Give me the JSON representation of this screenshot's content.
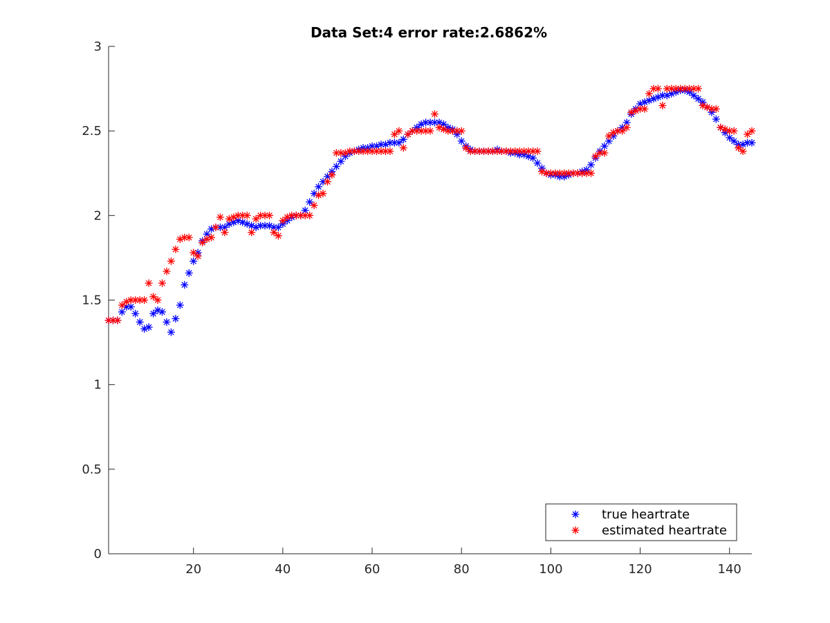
{
  "chart_data": {
    "type": "scatter",
    "title": "Data Set:4 error rate:2.6862%",
    "xlabel": "",
    "ylabel": "",
    "xlim": [
      1,
      145
    ],
    "ylim": [
      0,
      3
    ],
    "xticks": [
      20,
      40,
      60,
      80,
      100,
      120,
      140
    ],
    "yticks": [
      0,
      0.5,
      1,
      1.5,
      2,
      2.5,
      3
    ],
    "ytick_labels": [
      "0",
      "0.5",
      "1",
      "1.5",
      "2",
      "2.5",
      "3"
    ],
    "grid": false,
    "legend_position": "bottom-right",
    "marker": "asterisk",
    "series": [
      {
        "name": "true heartrate",
        "color": "#0000ff",
        "x": [
          1,
          2,
          3,
          4,
          5,
          6,
          7,
          8,
          9,
          10,
          11,
          12,
          13,
          14,
          15,
          16,
          17,
          18,
          19,
          20,
          21,
          22,
          23,
          24,
          25,
          26,
          27,
          28,
          29,
          30,
          31,
          32,
          33,
          34,
          35,
          36,
          37,
          38,
          39,
          40,
          41,
          42,
          43,
          44,
          45,
          46,
          47,
          48,
          49,
          50,
          51,
          52,
          53,
          54,
          55,
          56,
          57,
          58,
          59,
          60,
          61,
          62,
          63,
          64,
          65,
          66,
          67,
          68,
          69,
          70,
          71,
          72,
          73,
          74,
          75,
          76,
          77,
          78,
          79,
          80,
          81,
          82,
          83,
          84,
          85,
          86,
          87,
          88,
          89,
          90,
          91,
          92,
          93,
          94,
          95,
          96,
          97,
          98,
          99,
          100,
          101,
          102,
          103,
          104,
          105,
          106,
          107,
          108,
          109,
          110,
          111,
          112,
          113,
          114,
          115,
          116,
          117,
          118,
          119,
          120,
          121,
          122,
          123,
          124,
          125,
          126,
          127,
          128,
          129,
          130,
          131,
          132,
          133,
          134,
          135,
          136,
          137,
          138,
          139,
          140,
          141,
          142,
          143,
          144,
          145
        ],
        "y": [
          1.38,
          1.38,
          1.38,
          1.43,
          1.46,
          1.46,
          1.42,
          1.37,
          1.33,
          1.34,
          1.42,
          1.44,
          1.43,
          1.37,
          1.31,
          1.39,
          1.47,
          1.59,
          1.66,
          1.73,
          1.78,
          1.85,
          1.89,
          1.92,
          1.93,
          1.93,
          1.93,
          1.95,
          1.96,
          1.97,
          1.96,
          1.95,
          1.94,
          1.93,
          1.94,
          1.94,
          1.94,
          1.93,
          1.93,
          1.95,
          1.97,
          1.99,
          2.0,
          2.0,
          2.03,
          2.08,
          2.13,
          2.17,
          2.2,
          2.23,
          2.26,
          2.29,
          2.32,
          2.35,
          2.37,
          2.38,
          2.39,
          2.4,
          2.4,
          2.41,
          2.41,
          2.42,
          2.42,
          2.43,
          2.43,
          2.43,
          2.45,
          2.48,
          2.5,
          2.52,
          2.54,
          2.55,
          2.55,
          2.55,
          2.55,
          2.54,
          2.52,
          2.51,
          2.48,
          2.44,
          2.41,
          2.39,
          2.38,
          2.38,
          2.38,
          2.38,
          2.38,
          2.39,
          2.38,
          2.38,
          2.37,
          2.37,
          2.36,
          2.36,
          2.35,
          2.34,
          2.31,
          2.28,
          2.25,
          2.24,
          2.24,
          2.23,
          2.23,
          2.24,
          2.25,
          2.25,
          2.26,
          2.27,
          2.3,
          2.34,
          2.38,
          2.41,
          2.44,
          2.47,
          2.5,
          2.52,
          2.55,
          2.6,
          2.63,
          2.66,
          2.67,
          2.68,
          2.69,
          2.7,
          2.71,
          2.71,
          2.72,
          2.73,
          2.74,
          2.74,
          2.73,
          2.71,
          2.69,
          2.67,
          2.64,
          2.61,
          2.57,
          2.52,
          2.49,
          2.46,
          2.44,
          2.42,
          2.42,
          2.43,
          2.43
        ]
      },
      {
        "name": "estimated heartrate",
        "color": "#ff0000",
        "x": [
          1,
          2,
          3,
          4,
          5,
          6,
          7,
          8,
          9,
          10,
          11,
          12,
          13,
          14,
          15,
          16,
          17,
          18,
          19,
          20,
          21,
          22,
          23,
          24,
          25,
          26,
          27,
          28,
          29,
          30,
          31,
          32,
          33,
          34,
          35,
          36,
          37,
          38,
          39,
          40,
          41,
          42,
          43,
          44,
          45,
          46,
          47,
          48,
          49,
          50,
          51,
          52,
          53,
          54,
          55,
          56,
          57,
          58,
          59,
          60,
          61,
          62,
          63,
          64,
          65,
          66,
          67,
          68,
          69,
          70,
          71,
          72,
          73,
          74,
          75,
          76,
          77,
          78,
          79,
          80,
          81,
          82,
          83,
          84,
          85,
          86,
          87,
          88,
          89,
          90,
          91,
          92,
          93,
          94,
          95,
          96,
          97,
          98,
          99,
          100,
          101,
          102,
          103,
          104,
          105,
          106,
          107,
          108,
          109,
          110,
          111,
          112,
          113,
          114,
          115,
          116,
          117,
          118,
          119,
          120,
          121,
          122,
          123,
          124,
          125,
          126,
          127,
          128,
          129,
          130,
          131,
          132,
          133,
          134,
          135,
          136,
          137,
          138,
          139,
          140,
          141,
          142,
          143,
          144,
          145
        ],
        "y": [
          1.38,
          1.38,
          1.38,
          1.47,
          1.49,
          1.5,
          1.5,
          1.5,
          1.5,
          1.6,
          1.52,
          1.5,
          1.6,
          1.67,
          1.73,
          1.8,
          1.86,
          1.87,
          1.87,
          1.78,
          1.76,
          1.84,
          1.86,
          1.87,
          1.93,
          1.99,
          1.9,
          1.98,
          1.99,
          2.0,
          2.0,
          2.0,
          1.9,
          1.98,
          2.0,
          2.0,
          2.0,
          1.9,
          1.88,
          1.97,
          1.99,
          2.0,
          2.0,
          2.0,
          2.0,
          2.0,
          2.06,
          2.12,
          2.13,
          2.2,
          2.24,
          2.37,
          2.37,
          2.37,
          2.38,
          2.38,
          2.38,
          2.38,
          2.38,
          2.38,
          2.38,
          2.38,
          2.38,
          2.38,
          2.48,
          2.5,
          2.4,
          2.48,
          2.5,
          2.5,
          2.5,
          2.5,
          2.5,
          2.6,
          2.52,
          2.51,
          2.5,
          2.5,
          2.5,
          2.5,
          2.4,
          2.38,
          2.38,
          2.38,
          2.38,
          2.38,
          2.38,
          2.38,
          2.38,
          2.38,
          2.38,
          2.38,
          2.38,
          2.38,
          2.38,
          2.38,
          2.38,
          2.26,
          2.25,
          2.25,
          2.25,
          2.25,
          2.25,
          2.25,
          2.25,
          2.25,
          2.25,
          2.25,
          2.25,
          2.35,
          2.37,
          2.37,
          2.47,
          2.49,
          2.5,
          2.5,
          2.52,
          2.61,
          2.62,
          2.63,
          2.63,
          2.72,
          2.75,
          2.75,
          2.65,
          2.75,
          2.75,
          2.75,
          2.75,
          2.75,
          2.75,
          2.75,
          2.75,
          2.65,
          2.64,
          2.63,
          2.63,
          2.52,
          2.51,
          2.5,
          2.5,
          2.4,
          2.38,
          2.48,
          2.5
        ]
      }
    ]
  }
}
